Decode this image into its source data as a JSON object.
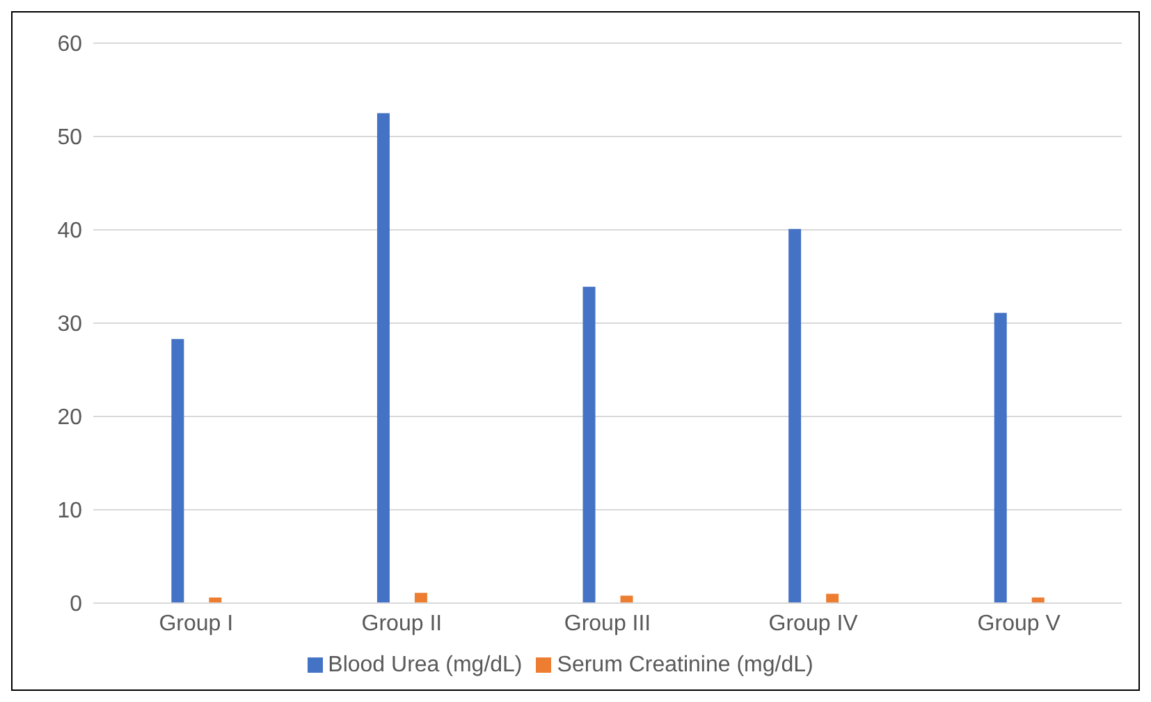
{
  "chart_data": {
    "type": "bar",
    "categories": [
      "Group I",
      "Group II",
      "Group III",
      "Group IV",
      "Group V"
    ],
    "series": [
      {
        "name": "Blood Urea (mg/dL)",
        "color": "#4472c4",
        "values": [
          28.3,
          52.5,
          33.9,
          40.1,
          31.1
        ]
      },
      {
        "name": "Serum Creatinine (mg/dL)",
        "color": "#ed7d31",
        "values": [
          0.6,
          1.1,
          0.8,
          1.0,
          0.6
        ]
      }
    ],
    "ylim": [
      0,
      60
    ],
    "yticks": [
      0,
      10,
      20,
      30,
      40,
      50,
      60
    ],
    "grid": "y",
    "legend": "bottom"
  }
}
